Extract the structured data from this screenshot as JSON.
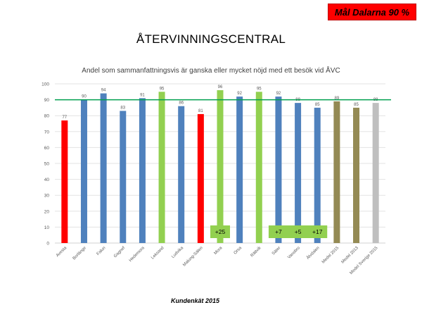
{
  "goal_badge": "Mål Dalarna 90 %",
  "page_title": "ÅTERVINNINGSCENTRAL",
  "footer": "Kundenkät 2015",
  "chart_data": {
    "type": "bar",
    "title": "Andel som sammanfattningsvis är ganska eller mycket nöjd med ett besök vid ÅVC",
    "xlabel": "",
    "ylabel": "",
    "ylim": [
      0,
      100
    ],
    "yticks": [
      "0",
      "10",
      "20",
      "30",
      "40",
      "50",
      "60",
      "70",
      "80",
      "90",
      "100"
    ],
    "grid": true,
    "target_line": 90,
    "target_color": "#00a050",
    "categories": [
      "Avesta",
      "Borlänge",
      "Falun",
      "Gagnef",
      "Hedemora",
      "Leksand",
      "Ludvika",
      "Malung-Sälen",
      "Mora",
      "Orsa",
      "Rättvik",
      "Säter",
      "Vansbro",
      "Älvdalen",
      "Medel 2015",
      "Medel 2013",
      "Medel Sverige 2015"
    ],
    "values": [
      77,
      90,
      94,
      83,
      91,
      95,
      86,
      81,
      96,
      92,
      95,
      92,
      88,
      85,
      89,
      85,
      88
    ],
    "value_labels": [
      "77",
      "90",
      "94",
      "83",
      "91",
      "95",
      "86",
      "81",
      "96",
      "92",
      "95",
      "92",
      "88",
      "85",
      "89",
      "85",
      "88"
    ],
    "colors": [
      "#ff0000",
      "#4f81bd",
      "#4f81bd",
      "#4f81bd",
      "#4f81bd",
      "#92d050",
      "#4f81bd",
      "#ff0000",
      "#92d050",
      "#4f81bd",
      "#92d050",
      "#4f81bd",
      "#4f81bd",
      "#4f81bd",
      "#948a54",
      "#948a54",
      "#bfbfbf"
    ],
    "annotations": [
      {
        "category": "Mora",
        "text": "+25"
      },
      {
        "category": "Säter",
        "text": "+7"
      },
      {
        "category": "Vansbro",
        "text": "+5"
      },
      {
        "category": "Älvdalen",
        "text": "+17"
      }
    ],
    "annotation_color": "#92d050"
  }
}
